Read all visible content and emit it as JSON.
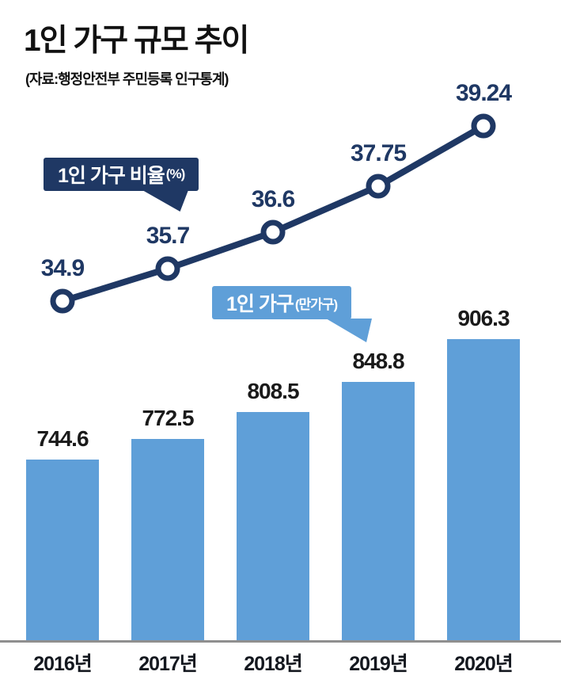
{
  "title": "1인 가구 규모 추이",
  "subtitle": "(자료:행정안전부 주민등록 인구통계)",
  "line_callout": {
    "label": "1인 가구 비율",
    "unit": "(%)"
  },
  "bar_callout": {
    "label": "1인 가구",
    "unit": "(만가구)"
  },
  "colors": {
    "navy": "#1f3864",
    "bar_blue": "#5f9fd8",
    "axis_gray": "#8f8f8f",
    "text_dark": "#1a1a1a"
  },
  "chart_data": {
    "type": "combo line+bar",
    "categories": [
      "2016년",
      "2017년",
      "2018년",
      "2019년",
      "2020년"
    ],
    "series": [
      {
        "name": "1인 가구 비율(%)",
        "type": "line",
        "values": [
          34.9,
          35.7,
          36.6,
          37.75,
          39.24
        ]
      },
      {
        "name": "1인 가구(만가구)",
        "type": "bar",
        "values": [
          744.6,
          772.5,
          808.5,
          848.8,
          906.3
        ]
      }
    ],
    "title": "1인 가구 규모 추이",
    "source": "자료:행정안전부 주민등록 인구통계",
    "legend_position": "floating callouts",
    "grid": false
  }
}
